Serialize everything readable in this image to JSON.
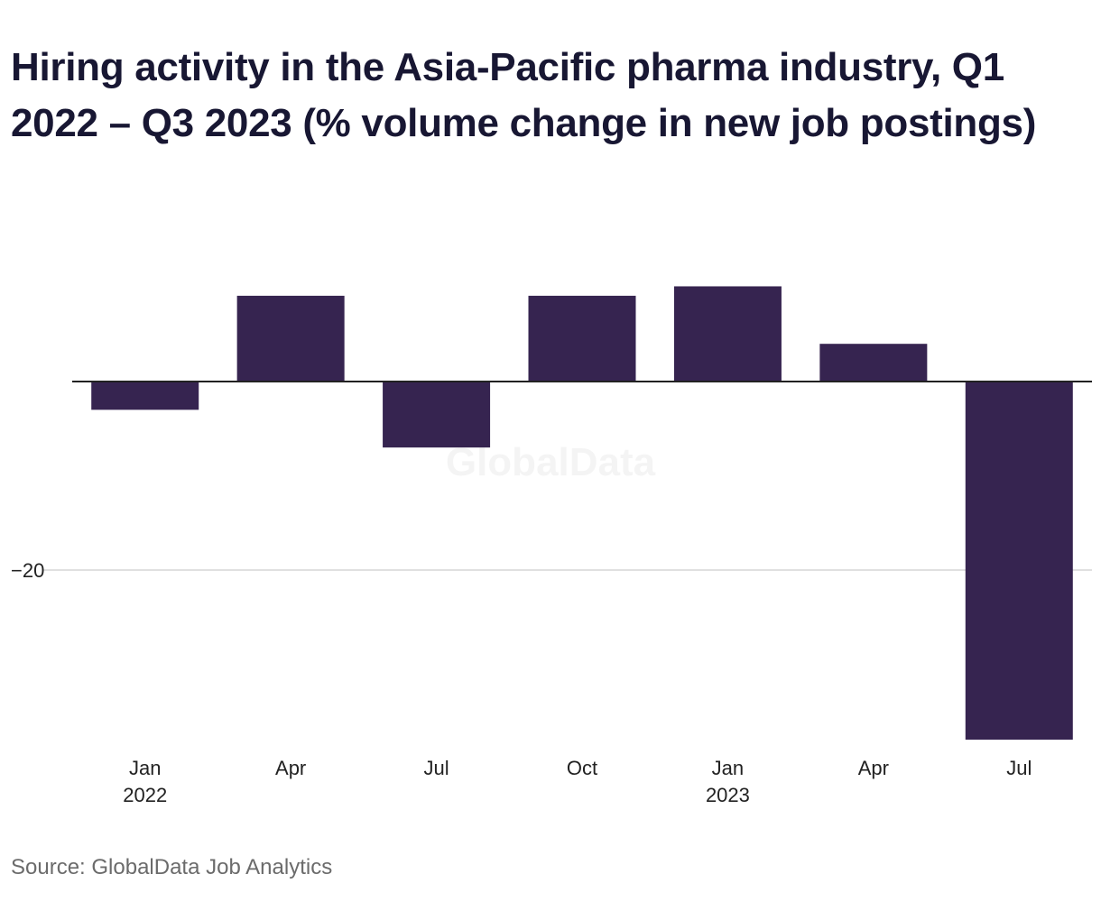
{
  "title": "Hiring activity in the Asia-Pacific pharma industry, Q1 2022 – Q3 2023 (% volume change in new job postings)",
  "source": "Source: GlobalData Job Analytics",
  "watermark": "GlobalData",
  "colors": {
    "bar": "#362450",
    "zero_line": "#222222",
    "grid": "#d6d6d6"
  },
  "chart_data": {
    "type": "bar",
    "categories": [
      "Jan 2022",
      "Apr 2022",
      "Jul 2022",
      "Oct 2022",
      "Jan 2023",
      "Apr 2023",
      "Jul 2023"
    ],
    "x_tick_labels": [
      {
        "label": "Jan",
        "year": "2022"
      },
      {
        "label": "Apr",
        "year": ""
      },
      {
        "label": "Jul",
        "year": ""
      },
      {
        "label": "Oct",
        "year": ""
      },
      {
        "label": "Jan",
        "year": "2023"
      },
      {
        "label": "Apr",
        "year": ""
      },
      {
        "label": "Jul",
        "year": ""
      }
    ],
    "values": [
      -3,
      9.1,
      -7,
      9.1,
      10.1,
      4,
      -38
    ],
    "y_ticks": [
      {
        "value": -20,
        "label": "−20"
      }
    ],
    "ylim": [
      -39.5,
      13
    ],
    "xlabel": "",
    "ylabel": "",
    "grid": true,
    "legend": "none"
  }
}
